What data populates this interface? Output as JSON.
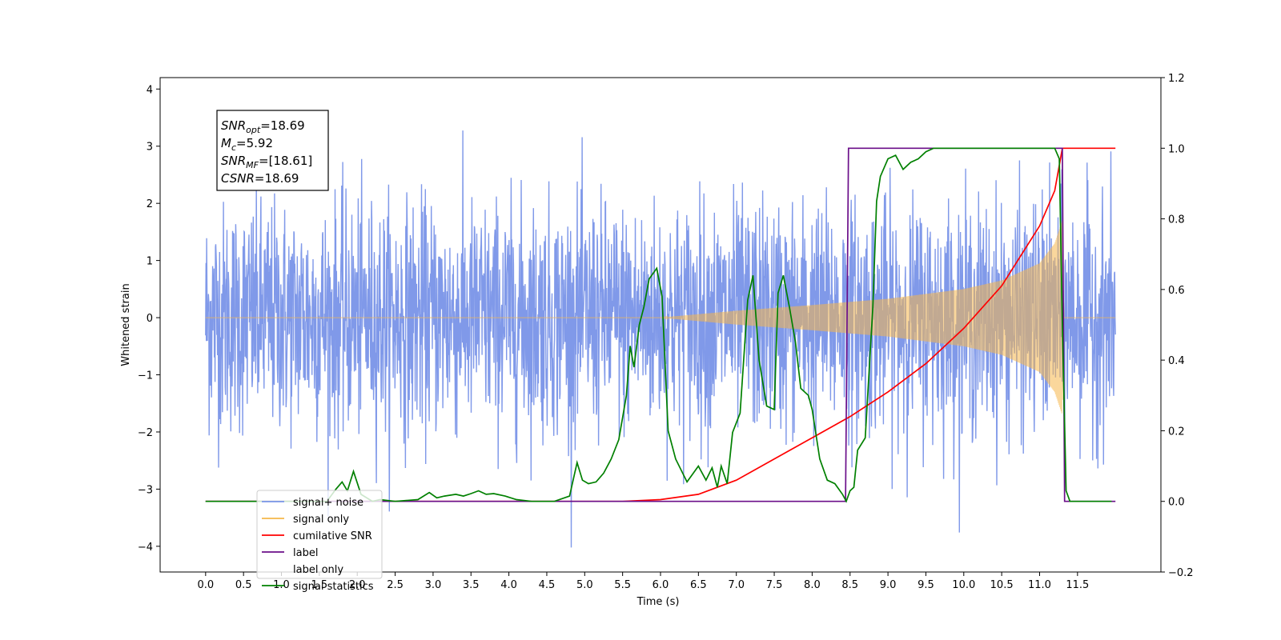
{
  "chart_data": {
    "type": "line",
    "xlabel": "Time (s)",
    "ylabel": "Whitened strain",
    "xlim": [
      -0.6,
      12.6
    ],
    "ylim": [
      -4.45,
      4.2
    ],
    "y2lim": [
      -0.2,
      1.2
    ],
    "x_ticks": [
      "0.0",
      "0.5",
      "1.0",
      "1.5",
      "2.0",
      "2.5",
      "3.0",
      "3.5",
      "4.0",
      "4.5",
      "5.0",
      "5.5",
      "6.0",
      "6.5",
      "7.0",
      "7.5",
      "8.0",
      "8.5",
      "9.0",
      "9.5",
      "10.0",
      "10.5",
      "11.0",
      "11.5"
    ],
    "y_ticks": [
      "4",
      "3",
      "2",
      "1",
      "0",
      "−1",
      "−2",
      "−3",
      "−4"
    ],
    "y2_ticks": [
      "1.2",
      "1.0",
      "0.8",
      "0.6",
      "0.4",
      "0.2",
      "0.0",
      "−0.2"
    ],
    "legend_position": "lower-left",
    "annotation": {
      "snr_opt": {
        "name": "SNR",
        "sub": "opt",
        "value": "=18.69"
      },
      "mc": {
        "name": "M",
        "sub": "c",
        "value": "=5.92"
      },
      "snr_mf": {
        "name": "SNR",
        "sub": "MF",
        "value": "=[18.61]"
      },
      "csnr": {
        "name": "CSNR",
        "sub": "",
        "value": "=18.69"
      }
    },
    "series": [
      {
        "name": "signal+ noise",
        "color": "#7994e8",
        "axis": "left",
        "description": "whitened noise, sigma ~1, spanning 0 to 12 s",
        "x_range": [
          0,
          12
        ],
        "approx_std": 1.0
      },
      {
        "name": "signal only",
        "color": "#f5b74a",
        "axis": "left",
        "description": "chirp with amplitude growing from ~0 at 6 s to ~1.7 at 11.3 s, then zero",
        "x_range": [
          0,
          12
        ],
        "envelope": {
          "x": [
            0,
            6.0,
            7.0,
            8.0,
            9.0,
            10.0,
            10.5,
            11.0,
            11.2,
            11.3,
            11.32,
            12.0
          ],
          "amp": [
            0,
            0,
            0.12,
            0.22,
            0.33,
            0.5,
            0.65,
            0.95,
            1.3,
            1.7,
            0,
            0
          ]
        }
      },
      {
        "name": "cumilative SNR",
        "color": "#ff0000",
        "axis": "right",
        "x": [
          0,
          5.5,
          6.0,
          6.5,
          7.0,
          7.5,
          8.0,
          8.5,
          9.0,
          9.5,
          10.0,
          10.5,
          11.0,
          11.2,
          11.3,
          12.0
        ],
        "y": [
          0,
          0,
          0.005,
          0.02,
          0.06,
          0.12,
          0.18,
          0.24,
          0.31,
          0.39,
          0.49,
          0.61,
          0.78,
          0.88,
          1.0,
          1.0
        ]
      },
      {
        "name": "label",
        "color": "#6b0f8a",
        "axis": "right",
        "x": [
          0,
          8.44,
          8.48,
          11.3,
          11.33,
          12.0
        ],
        "y": [
          0,
          0,
          1,
          1,
          0,
          0
        ]
      },
      {
        "name": "label only",
        "color": "#8b8b8b",
        "axis": "right",
        "hidden": true,
        "x": [],
        "y": []
      },
      {
        "name": "signal statistics",
        "color": "#008000",
        "axis": "right",
        "x": [
          0,
          1.6,
          1.72,
          1.8,
          1.87,
          1.95,
          2.05,
          2.2,
          2.3,
          2.5,
          2.8,
          2.95,
          3.05,
          3.15,
          3.3,
          3.4,
          3.5,
          3.6,
          3.7,
          3.8,
          3.95,
          4.1,
          4.3,
          4.6,
          4.8,
          4.9,
          4.97,
          5.05,
          5.15,
          5.25,
          5.35,
          5.45,
          5.55,
          5.6,
          5.65,
          5.72,
          5.78,
          5.85,
          5.95,
          6.02,
          6.1,
          6.2,
          6.35,
          6.5,
          6.6,
          6.68,
          6.75,
          6.8,
          6.88,
          6.95,
          7.05,
          7.15,
          7.22,
          7.3,
          7.4,
          7.5,
          7.55,
          7.62,
          7.7,
          7.78,
          7.85,
          7.95,
          8.0,
          8.1,
          8.2,
          8.3,
          8.4,
          8.45,
          8.5,
          8.55,
          8.6,
          8.7,
          8.8,
          8.85,
          8.9,
          9.0,
          9.1,
          9.2,
          9.3,
          9.4,
          9.5,
          9.6,
          9.8,
          10.0,
          10.5,
          11.0,
          11.2,
          11.26,
          11.3,
          11.35,
          11.4,
          11.95
        ],
        "y": [
          0,
          0,
          0.035,
          0.055,
          0.03,
          0.085,
          0.02,
          0.0,
          0.005,
          0.0,
          0.005,
          0.025,
          0.01,
          0.015,
          0.02,
          0.015,
          0.022,
          0.03,
          0.02,
          0.022,
          0.015,
          0.005,
          0.0,
          0.0,
          0.015,
          0.11,
          0.06,
          0.05,
          0.055,
          0.08,
          0.12,
          0.175,
          0.3,
          0.44,
          0.38,
          0.5,
          0.55,
          0.63,
          0.66,
          0.58,
          0.2,
          0.12,
          0.055,
          0.1,
          0.06,
          0.095,
          0.04,
          0.1,
          0.05,
          0.195,
          0.25,
          0.57,
          0.64,
          0.4,
          0.27,
          0.26,
          0.59,
          0.64,
          0.55,
          0.45,
          0.32,
          0.3,
          0.26,
          0.12,
          0.06,
          0.05,
          0.02,
          0.0,
          0.03,
          0.04,
          0.145,
          0.18,
          0.55,
          0.85,
          0.92,
          0.97,
          0.98,
          0.94,
          0.96,
          0.97,
          0.99,
          1.0,
          1.0,
          1.0,
          1.0,
          1.0,
          1.0,
          0.97,
          0.5,
          0.03,
          0.0,
          0.0
        ]
      }
    ]
  }
}
